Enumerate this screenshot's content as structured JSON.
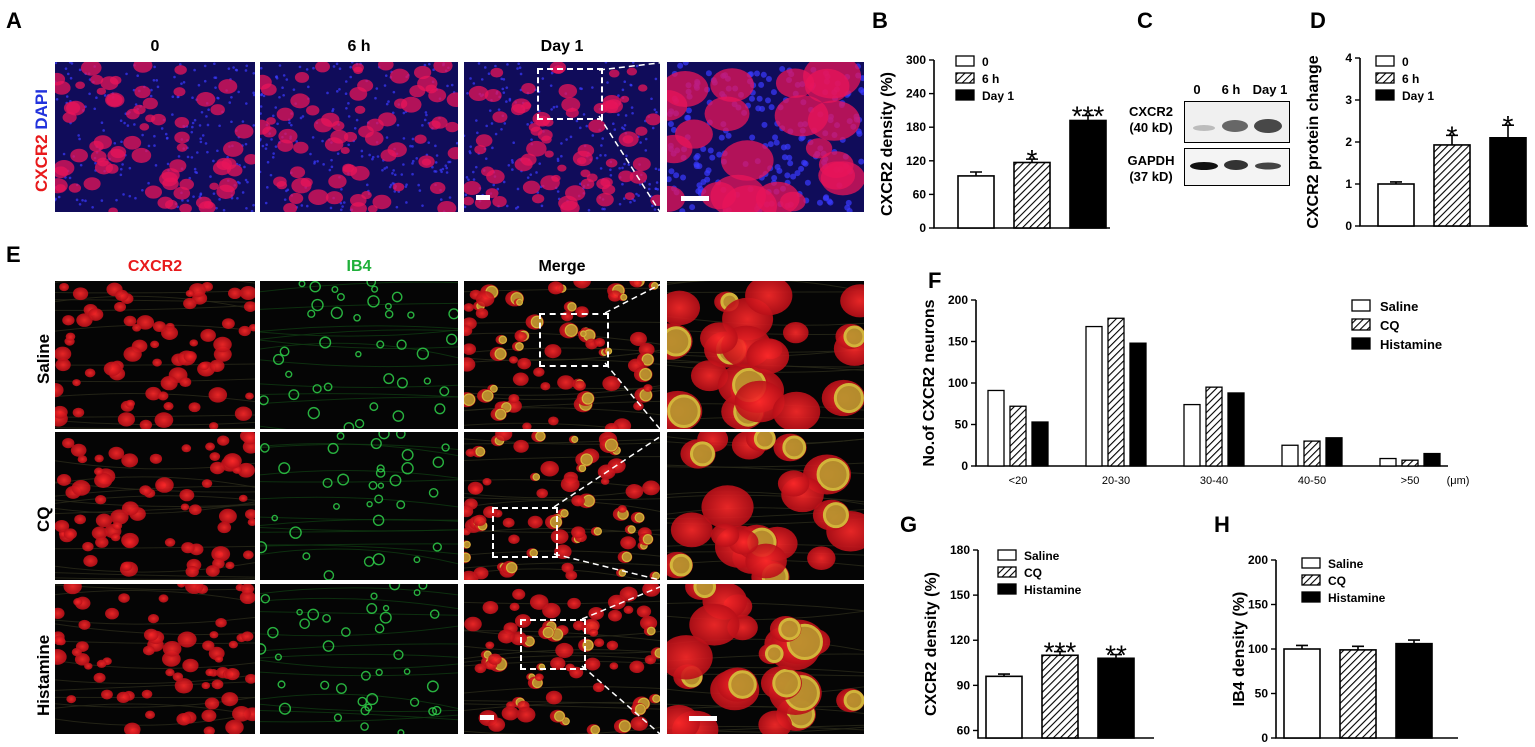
{
  "panels": {
    "A": "A",
    "B": "B",
    "C": "C",
    "D": "D",
    "E": "E",
    "F": "F",
    "G": "G",
    "H": "H"
  },
  "panel_a": {
    "columns": [
      "0",
      "6 h",
      "Day 1"
    ],
    "stain_red": "CXCR2",
    "stain_blue": "DAPI"
  },
  "panel_c": {
    "lanes": [
      "0",
      "6 h",
      "Day 1"
    ],
    "row1_name": "CXCR2",
    "row1_kd": "(40 kD)",
    "row2_name": "GAPDH",
    "row2_kd": "(37 kD)"
  },
  "panel_e": {
    "columns": [
      "CXCR2",
      "IB4",
      "Merge"
    ],
    "rows": [
      "Saline",
      "CQ",
      "Histamine"
    ],
    "color_cxcr2": "#e8191b",
    "color_ib4": "#1fb03a"
  },
  "chart_data": [
    {
      "panel": "B",
      "type": "bar",
      "categories": [
        "0",
        "6 h",
        "Day 1"
      ],
      "values": [
        93,
        117,
        192
      ],
      "errors": [
        7,
        6,
        9
      ],
      "significance": [
        "",
        "*",
        "***"
      ],
      "patterns": [
        "open",
        "hatched",
        "solid"
      ],
      "ylabel": "CXCR2 density (%)",
      "ylim": [
        0,
        300
      ],
      "yticks": [
        "0",
        "60",
        "120",
        "180",
        "240",
        "300"
      ],
      "legend": [
        "0",
        "6 h",
        "Day 1"
      ],
      "legend_position": "top-left"
    },
    {
      "panel": "D",
      "type": "bar",
      "categories": [
        "0",
        "6 h",
        "Day 1"
      ],
      "values": [
        1.0,
        1.93,
        2.1
      ],
      "errors": [
        0.05,
        0.23,
        0.3
      ],
      "significance": [
        "",
        "*",
        "*"
      ],
      "patterns": [
        "open",
        "hatched",
        "solid"
      ],
      "ylabel": "CXCR2 protein change",
      "ylim": [
        0,
        4
      ],
      "yticks": [
        "0",
        "1",
        "2",
        "3",
        "4"
      ],
      "legend": [
        "0",
        "6 h",
        "Day 1"
      ],
      "legend_position": "top-left"
    },
    {
      "panel": "F",
      "type": "bar",
      "categories": [
        "<20",
        "20-30",
        "30-40",
        "40-50",
        ">50"
      ],
      "unit": "(μm)",
      "series": [
        {
          "name": "Saline",
          "pattern": "open",
          "values": [
            91,
            168,
            74,
            25,
            9
          ]
        },
        {
          "name": "CQ",
          "pattern": "hatched",
          "values": [
            72,
            178,
            95,
            30,
            7
          ]
        },
        {
          "name": "Histamine",
          "pattern": "solid",
          "values": [
            53,
            148,
            88,
            34,
            15
          ]
        }
      ],
      "ylabel": "No.of CXCR2 neurons",
      "ylim": [
        0,
        200
      ],
      "yticks": [
        "0",
        "50",
        "100",
        "150",
        "200"
      ],
      "legend_position": "top-right"
    },
    {
      "panel": "G",
      "type": "bar",
      "categories": [
        "Saline",
        "CQ",
        "Histamine"
      ],
      "values": [
        96,
        110,
        108
      ],
      "errors": [
        1.5,
        2.5,
        2.5
      ],
      "significance": [
        "",
        "***",
        "**"
      ],
      "patterns": [
        "open",
        "hatched",
        "solid"
      ],
      "ylabel": "CXCR2 density (%)",
      "ylim": [
        55,
        180
      ],
      "yticks": [
        "60",
        "90",
        "120",
        "150",
        "180"
      ],
      "legend": [
        "Saline",
        "CQ",
        "Histamine"
      ],
      "legend_position": "top-left"
    },
    {
      "panel": "H",
      "type": "bar",
      "categories": [
        "Saline",
        "CQ",
        "Histamine"
      ],
      "values": [
        100,
        99,
        106
      ],
      "errors": [
        4,
        4,
        4
      ],
      "significance": [
        "",
        "",
        ""
      ],
      "patterns": [
        "open",
        "hatched",
        "solid"
      ],
      "ylabel": "IB4 density (%)",
      "ylim": [
        0,
        200
      ],
      "yticks": [
        "0",
        "50",
        "100",
        "150",
        "200"
      ],
      "legend": [
        "Saline",
        "CQ",
        "Histamine"
      ],
      "legend_position": "top-left"
    }
  ]
}
